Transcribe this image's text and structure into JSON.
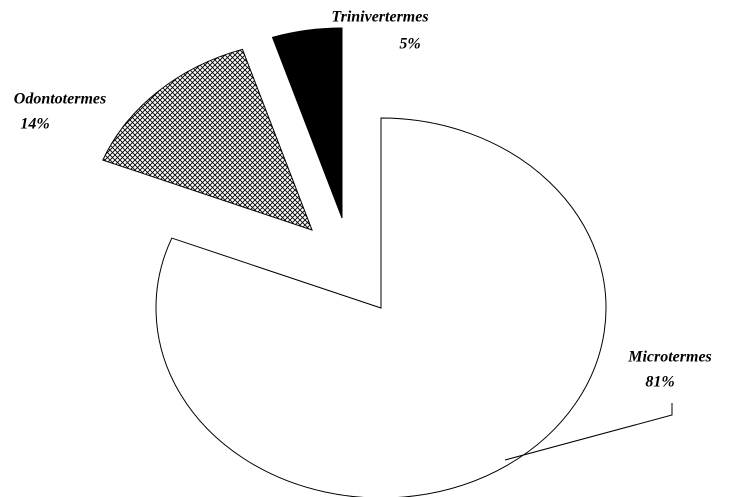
{
  "chart_data": {
    "type": "pie",
    "categories": [
      "Microtermes",
      "Odontotermes",
      "Trinivertermes"
    ],
    "values": [
      81,
      14,
      5
    ],
    "value_labels": [
      "81%",
      "14%",
      "5%"
    ],
    "colors": [
      "#ffffff",
      "#b0b0b0",
      "#000000"
    ]
  }
}
